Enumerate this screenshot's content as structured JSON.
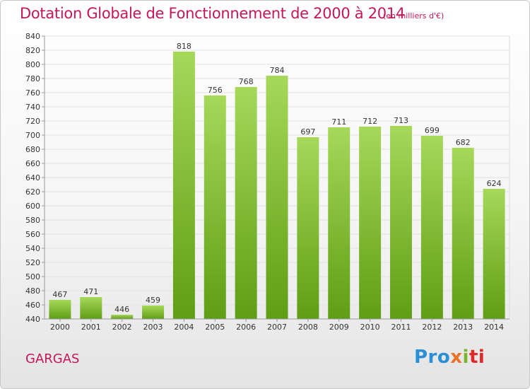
{
  "header": {
    "title": "Dotation Globale de Fonctionnement de 2000 à 2014",
    "subtitle": "(en milliers d'€)"
  },
  "footer": {
    "place": "GARGAS",
    "logo_parts": [
      "Pro",
      "x",
      "i",
      "ti"
    ]
  },
  "colors": {
    "bar_light": "#a6d85a",
    "bar_dark": "#5f9e14",
    "title": "#c2185b"
  },
  "chart_data": {
    "type": "bar",
    "title": "Dotation Globale de Fonctionnement de 2000 à 2014",
    "subtitle": "(en milliers d'€)",
    "categories": [
      "2000",
      "2001",
      "2002",
      "2003",
      "2004",
      "2005",
      "2006",
      "2007",
      "2008",
      "2009",
      "2010",
      "2011",
      "2012",
      "2013",
      "2014"
    ],
    "values": [
      467,
      471,
      446,
      459,
      818,
      756,
      768,
      784,
      697,
      711,
      712,
      713,
      699,
      682,
      624
    ],
    "ylim": [
      440,
      840
    ],
    "ytick_step": 20,
    "grid": true,
    "legend": "none"
  }
}
